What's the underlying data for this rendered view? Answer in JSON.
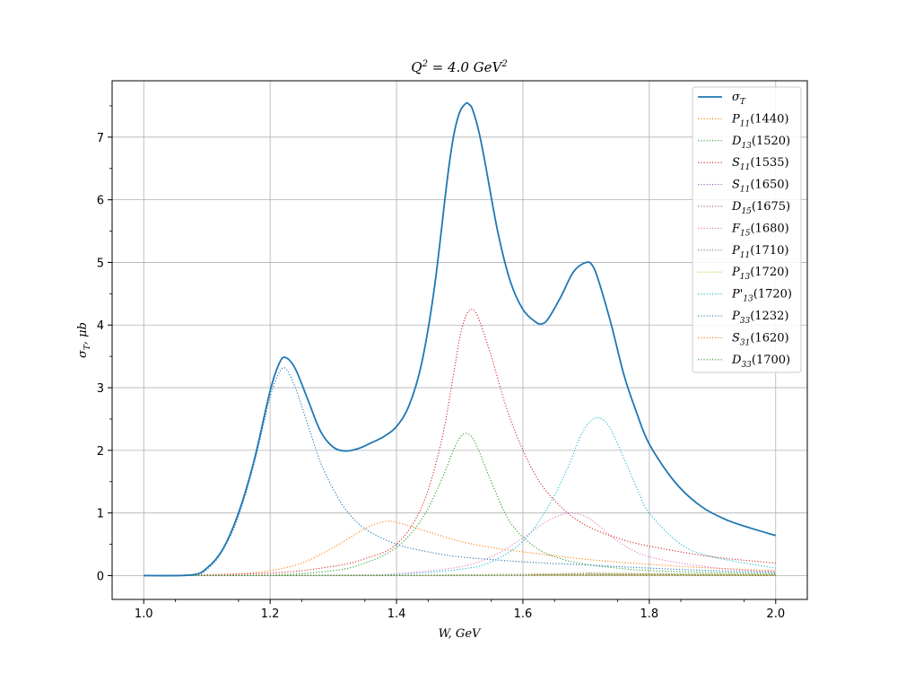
{
  "chart_data": {
    "type": "line",
    "title": "Q² = 4.0 GeV²",
    "xlabel": "W, GeV",
    "ylabel": "σ_T, μb",
    "xlim": [
      0.95,
      2.05
    ],
    "ylim": [
      -0.38,
      7.9
    ],
    "xticks": [
      1.0,
      1.2,
      1.4,
      1.6,
      1.8,
      2.0
    ],
    "xtick_labels": [
      "1.0",
      "1.2",
      "1.4",
      "1.6",
      "1.8",
      "2.0"
    ],
    "yticks": [
      0,
      1,
      2,
      3,
      4,
      5,
      6,
      7
    ],
    "ytick_labels": [
      "0",
      "1",
      "2",
      "3",
      "4",
      "5",
      "6",
      "7"
    ],
    "grid": true,
    "legend_position": "top-right",
    "series": [
      {
        "name": "σ_T",
        "color": "#1f77b4",
        "style": "solid",
        "x": [
          1.0,
          1.075,
          1.1,
          1.125,
          1.15,
          1.175,
          1.2,
          1.215,
          1.225,
          1.24,
          1.26,
          1.28,
          1.3,
          1.32,
          1.34,
          1.36,
          1.38,
          1.4,
          1.42,
          1.44,
          1.46,
          1.48,
          1.49,
          1.5,
          1.51,
          1.515,
          1.52,
          1.53,
          1.54,
          1.56,
          1.58,
          1.6,
          1.62,
          1.63,
          1.64,
          1.66,
          1.68,
          1.7,
          1.71,
          1.72,
          1.74,
          1.76,
          1.78,
          1.8,
          1.84,
          1.88,
          1.92,
          1.96,
          2.0
        ],
        "y": [
          0,
          0.01,
          0.12,
          0.42,
          1.0,
          1.85,
          2.95,
          3.4,
          3.48,
          3.3,
          2.8,
          2.3,
          2.05,
          1.99,
          2.03,
          2.12,
          2.22,
          2.38,
          2.72,
          3.4,
          4.6,
          6.3,
          7.0,
          7.4,
          7.54,
          7.52,
          7.45,
          7.1,
          6.6,
          5.5,
          4.7,
          4.25,
          4.05,
          4.02,
          4.1,
          4.45,
          4.85,
          5.0,
          4.95,
          4.7,
          4.0,
          3.2,
          2.6,
          2.1,
          1.5,
          1.12,
          0.9,
          0.76,
          0.64
        ]
      },
      {
        "name": "P_11(1440)",
        "color": "#ff7f0e",
        "style": "dotted",
        "x": [
          1.0,
          1.08,
          1.15,
          1.2,
          1.25,
          1.3,
          1.35,
          1.38,
          1.4,
          1.45,
          1.5,
          1.55,
          1.6,
          1.7,
          1.8,
          1.9,
          2.0
        ],
        "y": [
          0,
          0.01,
          0.03,
          0.08,
          0.2,
          0.45,
          0.75,
          0.86,
          0.85,
          0.7,
          0.55,
          0.45,
          0.38,
          0.26,
          0.18,
          0.12,
          0.08
        ]
      },
      {
        "name": "D_13(1520)",
        "color": "#2ca02c",
        "style": "dotted",
        "x": [
          1.0,
          1.2,
          1.3,
          1.35,
          1.4,
          1.44,
          1.47,
          1.49,
          1.5,
          1.51,
          1.52,
          1.53,
          1.55,
          1.58,
          1.62,
          1.66,
          1.7,
          1.75,
          1.8,
          1.9,
          2.0
        ],
        "y": [
          0,
          0.01,
          0.08,
          0.2,
          0.45,
          0.9,
          1.5,
          2.0,
          2.2,
          2.27,
          2.2,
          2.0,
          1.5,
          0.85,
          0.45,
          0.27,
          0.18,
          0.12,
          0.08,
          0.05,
          0.03
        ]
      },
      {
        "name": "S_11(1535)",
        "color": "#d62728",
        "style": "dotted",
        "x": [
          1.0,
          1.2,
          1.3,
          1.35,
          1.4,
          1.44,
          1.47,
          1.49,
          1.5,
          1.51,
          1.52,
          1.53,
          1.55,
          1.58,
          1.62,
          1.66,
          1.7,
          1.75,
          1.8,
          1.9,
          2.0
        ],
        "y": [
          0,
          0.04,
          0.15,
          0.27,
          0.5,
          1.1,
          2.1,
          3.2,
          3.8,
          4.15,
          4.25,
          4.1,
          3.5,
          2.5,
          1.6,
          1.1,
          0.8,
          0.6,
          0.47,
          0.3,
          0.2
        ]
      },
      {
        "name": "S_11(1650)",
        "color": "#9467bd",
        "style": "dotted",
        "x": [
          1.0,
          1.4,
          1.6,
          1.65,
          1.7,
          1.8,
          2.0
        ],
        "y": [
          0,
          0.003,
          0.01,
          0.015,
          0.012,
          0.008,
          0.004
        ]
      },
      {
        "name": "D_15(1675)",
        "color": "#8c564b",
        "style": "dotted",
        "x": [
          1.0,
          1.4,
          1.6,
          1.675,
          1.7,
          1.8,
          2.0
        ],
        "y": [
          0,
          0.005,
          0.02,
          0.03,
          0.028,
          0.02,
          0.01
        ]
      },
      {
        "name": "F_15(1680)",
        "color": "#e377c2",
        "style": "dotted",
        "x": [
          1.0,
          1.3,
          1.4,
          1.5,
          1.55,
          1.6,
          1.63,
          1.66,
          1.68,
          1.7,
          1.72,
          1.75,
          1.8,
          1.9,
          2.0
        ],
        "y": [
          0,
          0.01,
          0.03,
          0.14,
          0.3,
          0.6,
          0.82,
          0.97,
          1.0,
          0.94,
          0.8,
          0.55,
          0.3,
          0.13,
          0.06
        ]
      },
      {
        "name": "P_11(1710)",
        "color": "#7f7f7f",
        "style": "dotted",
        "x": [
          1.0,
          1.4,
          1.6,
          1.7,
          1.71,
          1.8,
          2.0
        ],
        "y": [
          0,
          0.005,
          0.02,
          0.04,
          0.04,
          0.03,
          0.015
        ]
      },
      {
        "name": "P_13(1720)",
        "color": "#bcbd22",
        "style": "dotted",
        "x": [
          1.0,
          1.4,
          1.6,
          1.72,
          1.8,
          2.0
        ],
        "y": [
          0,
          0.004,
          0.015,
          0.03,
          0.025,
          0.012
        ]
      },
      {
        "name": "P'_13(1720)",
        "color": "#17becf",
        "style": "dotted",
        "x": [
          1.0,
          1.3,
          1.4,
          1.5,
          1.55,
          1.6,
          1.64,
          1.67,
          1.69,
          1.705,
          1.72,
          1.735,
          1.75,
          1.78,
          1.8,
          1.85,
          1.9,
          2.0
        ],
        "y": [
          0,
          0.005,
          0.02,
          0.1,
          0.22,
          0.55,
          1.1,
          1.7,
          2.2,
          2.45,
          2.52,
          2.4,
          2.1,
          1.4,
          1.0,
          0.5,
          0.3,
          0.12
        ]
      },
      {
        "name": "P_33(1232)",
        "color": "#1f77b4",
        "style": "dotted",
        "x": [
          1.0,
          1.075,
          1.1,
          1.125,
          1.15,
          1.175,
          1.2,
          1.215,
          1.225,
          1.24,
          1.26,
          1.28,
          1.3,
          1.32,
          1.35,
          1.4,
          1.45,
          1.5,
          1.6,
          1.7,
          1.8,
          1.9,
          2.0
        ],
        "y": [
          0,
          0.005,
          0.1,
          0.4,
          0.95,
          1.8,
          2.85,
          3.25,
          3.3,
          3.0,
          2.4,
          1.8,
          1.38,
          1.05,
          0.75,
          0.5,
          0.38,
          0.3,
          0.22,
          0.17,
          0.12,
          0.08,
          0.05
        ]
      },
      {
        "name": "S_31(1620)",
        "color": "#ff7f0e",
        "style": "dotted",
        "x": [
          1.0,
          1.4,
          1.6,
          1.62,
          1.7,
          1.8,
          2.0
        ],
        "y": [
          0,
          0.003,
          0.012,
          0.014,
          0.012,
          0.008,
          0.004
        ]
      },
      {
        "name": "D_33(1700)",
        "color": "#2ca02c",
        "style": "dotted",
        "x": [
          1.0,
          1.4,
          1.6,
          1.7,
          1.8,
          2.0
        ],
        "y": [
          0,
          0.003,
          0.008,
          0.01,
          0.008,
          0.004
        ]
      }
    ],
    "legend": [
      {
        "main": "σ",
        "sub": "T",
        "rest": ""
      },
      {
        "main": "P",
        "sub": "11",
        "rest": "(1440)"
      },
      {
        "main": "D",
        "sub": "13",
        "rest": "(1520)"
      },
      {
        "main": "S",
        "sub": "11",
        "rest": "(1535)"
      },
      {
        "main": "S",
        "sub": "11",
        "rest": "(1650)"
      },
      {
        "main": "D",
        "sub": "15",
        "rest": "(1675)"
      },
      {
        "main": "F",
        "sub": "15",
        "rest": "(1680)"
      },
      {
        "main": "P",
        "sub": "11",
        "rest": "(1710)"
      },
      {
        "main": "P",
        "sub": "13",
        "rest": "(1720)"
      },
      {
        "main": "P'",
        "sub": "13",
        "rest": "(1720)"
      },
      {
        "main": "P",
        "sub": "33",
        "rest": "(1232)"
      },
      {
        "main": "S",
        "sub": "31",
        "rest": "(1620)"
      },
      {
        "main": "D",
        "sub": "33",
        "rest": "(1700)"
      }
    ]
  }
}
